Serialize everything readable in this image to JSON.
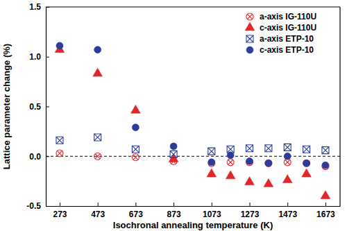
{
  "chart_data": {
    "type": "scatter",
    "x_label": "Isochronal annealing temperature (K)",
    "y_label": "Lattice parameter change (%)",
    "x": [
      273,
      473,
      673,
      873,
      1073,
      1173,
      1273,
      1373,
      1473,
      1573,
      1673
    ],
    "xlim": [
      200,
      1750
    ],
    "xticks": [
      273,
      473,
      673,
      873,
      1073,
      1273,
      1473,
      1673
    ],
    "ylim": [
      -0.5,
      1.5
    ],
    "yticks": [
      -0.5,
      {
        "value": 0,
        "label": "0.0"
      },
      0.5,
      {
        "value": 1,
        "label": "1.0"
      },
      1.5
    ],
    "hlines": [
      0
    ],
    "legend": "upper right",
    "series": [
      {
        "name": "a-axis IG-110U",
        "color": "#e3262a",
        "marker": "circle-x",
        "values": [
          0.03,
          0.0,
          -0.01,
          -0.05,
          -0.07,
          -0.06,
          -0.06,
          -0.07,
          -0.06,
          -0.07,
          -0.1
        ]
      },
      {
        "name": "c-axis IG-110U",
        "color": "#e3262a",
        "marker": "triangle",
        "values": [
          1.07,
          0.83,
          0.46,
          -0.03,
          -0.18,
          -0.2,
          -0.26,
          -0.28,
          -0.24,
          -0.18,
          -0.4
        ]
      },
      {
        "name": "a-axis ETP-10",
        "color": "#2b3c9b",
        "marker": "square-x",
        "values": [
          0.16,
          0.19,
          0.07,
          0.02,
          0.05,
          0.07,
          0.08,
          0.08,
          0.09,
          0.07,
          0.06
        ]
      },
      {
        "name": "c-axis ETP-10",
        "color": "#2b3c9b",
        "marker": "circle",
        "values": [
          1.11,
          1.07,
          0.29,
          0.1,
          -0.06,
          0.01,
          -0.05,
          -0.07,
          0.0,
          -0.07,
          -0.09
        ]
      }
    ]
  }
}
